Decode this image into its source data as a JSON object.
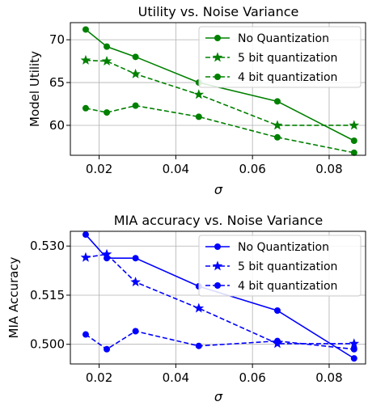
{
  "chart_data": [
    {
      "type": "line",
      "title": "Utility vs. Noise Variance",
      "xlabel": "σ",
      "ylabel": "Model Utility",
      "xlim": [
        0.0125,
        0.0895
      ],
      "ylim": [
        56.5,
        72.0
      ],
      "xticks": [
        0.02,
        0.04,
        0.06,
        0.08
      ],
      "xtick_labels": [
        "0.02",
        "0.04",
        "0.06",
        "0.08"
      ],
      "yticks": [
        60,
        65,
        70
      ],
      "ytick_labels": [
        "60",
        "65",
        "70"
      ],
      "grid": true,
      "legend": "top-right",
      "color": "#008000",
      "x": [
        0.0165,
        0.022,
        0.0295,
        0.046,
        0.0665,
        0.0865
      ],
      "series": [
        {
          "name": "No Quantization",
          "values": [
            71.2,
            69.2,
            68.0,
            65.0,
            62.8,
            58.2
          ],
          "marker": "circle",
          "dash": "solid"
        },
        {
          "name": "5 bit quantization",
          "values": [
            67.6,
            67.5,
            66.0,
            63.6,
            60.0,
            60.0
          ],
          "marker": "star",
          "dash": "dashed"
        },
        {
          "name": "4 bit quantization",
          "values": [
            62.0,
            61.5,
            62.3,
            61.0,
            58.6,
            56.8
          ],
          "marker": "circle",
          "dash": "dashed"
        }
      ]
    },
    {
      "type": "line",
      "title": "MIA accuracy vs. Noise Variance",
      "xlabel": "σ",
      "ylabel": "MIA Accuracy",
      "xlim": [
        0.0125,
        0.0895
      ],
      "ylim": [
        0.494,
        0.5345
      ],
      "xticks": [
        0.02,
        0.04,
        0.06,
        0.08
      ],
      "xtick_labels": [
        "0.02",
        "0.04",
        "0.06",
        "0.08"
      ],
      "yticks": [
        0.5,
        0.515,
        0.53
      ],
      "ytick_labels": [
        "0.500",
        "0.515",
        "0.530"
      ],
      "grid": true,
      "legend": "top-right",
      "color": "#0000ff",
      "x": [
        0.0165,
        0.022,
        0.0295,
        0.046,
        0.0665,
        0.0865
      ],
      "series": [
        {
          "name": "No Quantization",
          "values": [
            0.5335,
            0.5263,
            0.5263,
            0.5177,
            0.5103,
            0.4957
          ],
          "marker": "circle",
          "dash": "solid"
        },
        {
          "name": "5 bit quantization",
          "values": [
            0.5265,
            0.5275,
            0.519,
            0.511,
            0.5002,
            0.5002
          ],
          "marker": "star",
          "dash": "dashed"
        },
        {
          "name": "4 bit quantization",
          "values": [
            0.503,
            0.4985,
            0.504,
            0.4995,
            0.501,
            0.4985
          ],
          "marker": "circle",
          "dash": "dashed"
        }
      ]
    }
  ]
}
